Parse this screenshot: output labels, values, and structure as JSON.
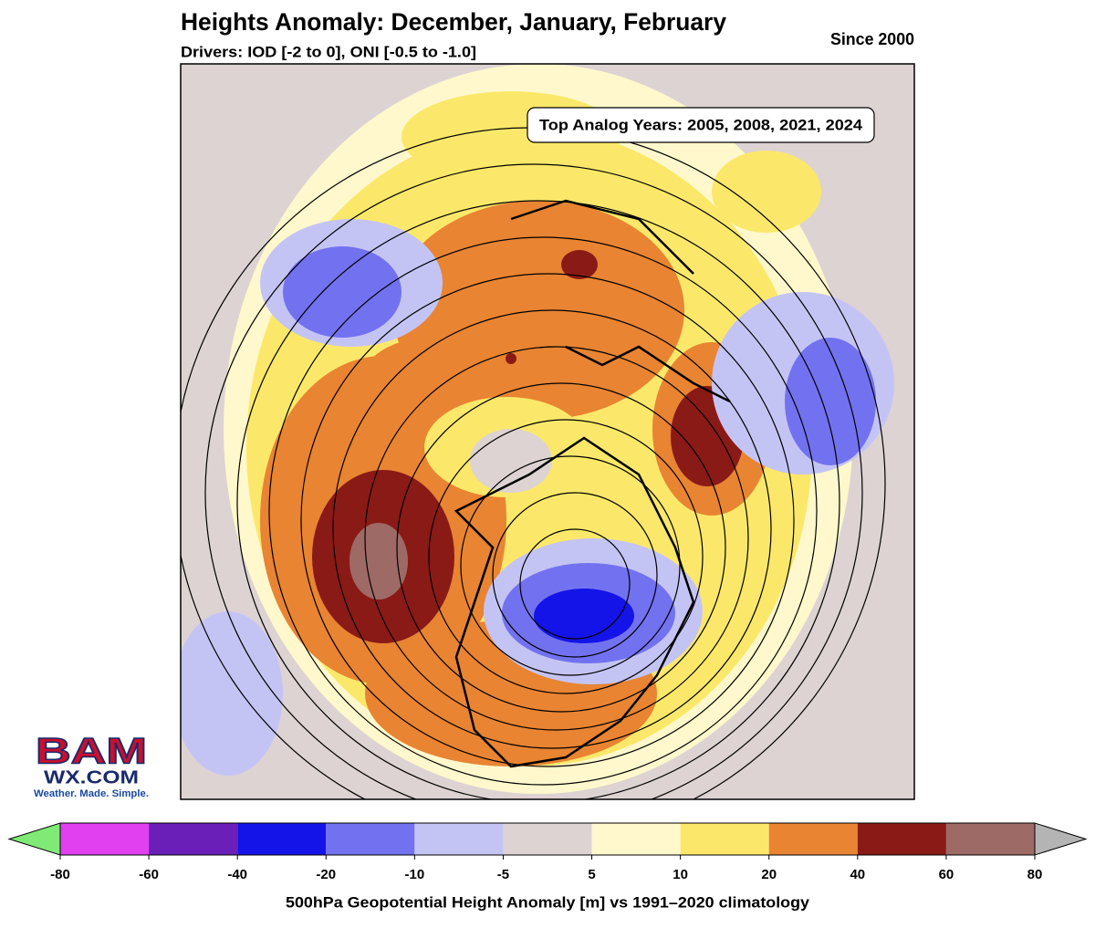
{
  "header": {
    "title": "Heights Anomaly: December, January, February",
    "subtitle": "Drivers: IOD [-2 to 0], ONI [-0.5 to -1.0]",
    "period": "Since 2000"
  },
  "annotation": "Top Analog Years: 2005, 2008, 2021, 2024",
  "logo": {
    "brand": "BAM",
    "site": "WX.COM",
    "tagline": "Weather. Made. Simple."
  },
  "colorbar": {
    "label": "500hPa Geopotential Height Anomaly [m] vs 1991–2020 climatology",
    "ticks": [
      -80,
      -60,
      -40,
      -20,
      -10,
      -5,
      5,
      10,
      20,
      40,
      60,
      80
    ],
    "colors": [
      "#e040f0",
      "#6a1fb8",
      "#1414e8",
      "#7272f0",
      "#c4c4f4",
      "#ddd3d3",
      "#fff8cc",
      "#fbe86a",
      "#e88432",
      "#8a1a16",
      "#9e6a66"
    ],
    "under": "#80ea76",
    "over": "#b4b4b4"
  }
}
